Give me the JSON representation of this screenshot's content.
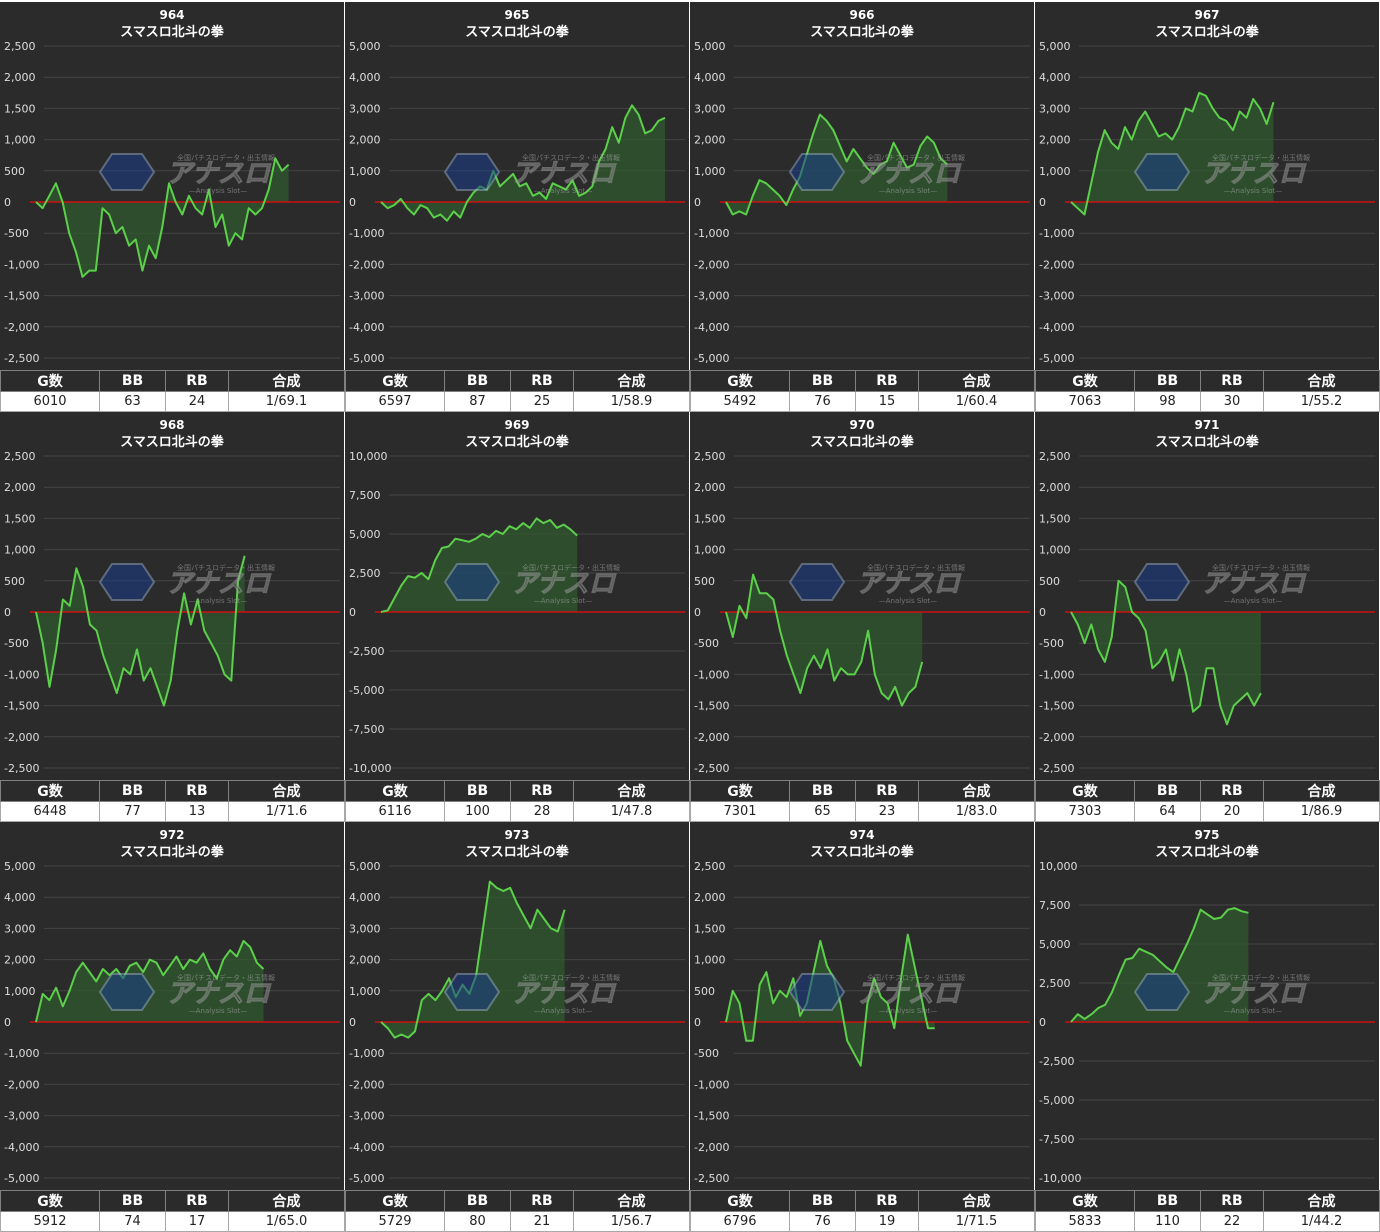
{
  "chart_data": [
    {
      "type": "area",
      "machine_no": "964",
      "title": "スマスロ北斗の拳",
      "ylim": [
        -2500,
        2500
      ],
      "yticks": [
        "2,500",
        "2,000",
        "1,500",
        "1,000",
        "500",
        "0",
        "-500",
        "-1,000",
        "-1,500",
        "-2,000",
        "-2,500"
      ],
      "y": [
        0,
        -100,
        100,
        300,
        0,
        -500,
        -800,
        -1200,
        -1100,
        -1100,
        -100,
        -200,
        -500,
        -400,
        -700,
        -600,
        -1100,
        -700,
        -900,
        -400,
        300,
        0,
        -200,
        100,
        -100,
        -200,
        200,
        -400,
        -200,
        -700,
        -500,
        -600,
        -100,
        -200,
        -100,
        200,
        700,
        500,
        600
      ]
    },
    {
      "type": "area",
      "machine_no": "965",
      "title": "スマスロ北斗の拳",
      "ylim": [
        -5000,
        5000
      ],
      "yticks": [
        "5,000",
        "4,000",
        "3,000",
        "2,000",
        "1,000",
        "0",
        "-1,000",
        "-2,000",
        "-3,000",
        "-4,000",
        "-5,000"
      ],
      "y": [
        0,
        -200,
        -100,
        100,
        -200,
        -400,
        -100,
        -200,
        -500,
        -400,
        -600,
        -300,
        -500,
        0,
        300,
        500,
        400,
        1000,
        500,
        700,
        900,
        500,
        600,
        200,
        300,
        100,
        600,
        500,
        400,
        700,
        200,
        300,
        500,
        1300,
        1700,
        2400,
        1900,
        2700,
        3100,
        2800,
        2200,
        2300,
        2600,
        2700
      ]
    },
    {
      "type": "area",
      "machine_no": "966",
      "title": "スマスロ北斗の拳",
      "ylim": [
        -5000,
        5000
      ],
      "yticks": [
        "5,000",
        "4,000",
        "3,000",
        "2,000",
        "1,000",
        "0",
        "-1,000",
        "-2,000",
        "-3,000",
        "-4,000",
        "-5,000"
      ],
      "y": [
        0,
        -400,
        -300,
        -400,
        200,
        700,
        600,
        400,
        200,
        -100,
        400,
        800,
        1500,
        2200,
        2800,
        2600,
        2300,
        1800,
        1300,
        1700,
        1400,
        1100,
        900,
        1200,
        1300,
        1900,
        1500,
        1100,
        1200,
        1800,
        2100,
        1900,
        1400,
        1200
      ]
    },
    {
      "type": "area",
      "machine_no": "967",
      "title": "スマスロ北斗の拳",
      "ylim": [
        -5000,
        5000
      ],
      "yticks": [
        "5,000",
        "4,000",
        "3,000",
        "2,000",
        "1,000",
        "0",
        "-1,000",
        "-2,000",
        "-3,000",
        "-4,000",
        "-5,000"
      ],
      "y": [
        0,
        -200,
        -400,
        600,
        1600,
        2300,
        1900,
        1700,
        2400,
        2000,
        2600,
        2900,
        2500,
        2100,
        2200,
        2000,
        2400,
        3000,
        2900,
        3500,
        3400,
        3000,
        2700,
        2600,
        2300,
        2900,
        2700,
        3300,
        3000,
        2500,
        3200
      ]
    },
    {
      "type": "area",
      "machine_no": "968",
      "title": "スマスロ北斗の拳",
      "ylim": [
        -2500,
        2500
      ],
      "yticks": [
        "2,500",
        "2,000",
        "1,500",
        "1,000",
        "500",
        "0",
        "-500",
        "-1,000",
        "-1,500",
        "-2,000",
        "-2,500"
      ],
      "y": [
        0,
        -500,
        -1200,
        -600,
        200,
        100,
        700,
        400,
        -200,
        -300,
        -700,
        -1000,
        -1300,
        -900,
        -1000,
        -600,
        -1100,
        -900,
        -1200,
        -1500,
        -1100,
        -300,
        300,
        -200,
        200,
        -300,
        -500,
        -700,
        -1000,
        -1100,
        500,
        900
      ]
    },
    {
      "type": "area",
      "machine_no": "969",
      "title": "スマスロ北斗の拳",
      "ylim": [
        -10000,
        10000
      ],
      "yticks": [
        "10,000",
        "7,500",
        "5,000",
        "2,500",
        "0",
        "-2,500",
        "-5,000",
        "-7,500",
        "-10,000"
      ],
      "y": [
        0,
        100,
        900,
        1700,
        2300,
        2200,
        2500,
        2100,
        3300,
        4100,
        4200,
        4700,
        4600,
        4500,
        4700,
        5000,
        4800,
        5200,
        5000,
        5500,
        5300,
        5700,
        5400,
        6000,
        5700,
        5900,
        5400,
        5600,
        5300,
        4900
      ]
    },
    {
      "type": "area",
      "machine_no": "970",
      "title": "スマスロ北斗の拳",
      "ylim": [
        -2500,
        2500
      ],
      "yticks": [
        "2,500",
        "2,000",
        "1,500",
        "1,000",
        "500",
        "0",
        "-500",
        "-1,000",
        "-1,500",
        "-2,000",
        "-2,500"
      ],
      "y": [
        0,
        -400,
        100,
        -100,
        600,
        300,
        300,
        200,
        -300,
        -700,
        -1000,
        -1300,
        -900,
        -700,
        -900,
        -600,
        -1100,
        -900,
        -1000,
        -1000,
        -800,
        -300,
        -1000,
        -1300,
        -1400,
        -1200,
        -1500,
        -1300,
        -1200,
        -800
      ]
    },
    {
      "type": "area",
      "machine_no": "971",
      "title": "スマスロ北斗の拳",
      "ylim": [
        -2500,
        2500
      ],
      "yticks": [
        "2,500",
        "2,000",
        "1,500",
        "1,000",
        "500",
        "0",
        "-500",
        "-1,000",
        "-1,500",
        "-2,000",
        "-2,500"
      ],
      "y": [
        0,
        -200,
        -500,
        -200,
        -600,
        -800,
        -400,
        500,
        400,
        0,
        -100,
        -300,
        -900,
        -800,
        -600,
        -1100,
        -600,
        -1000,
        -1600,
        -1500,
        -900,
        -900,
        -1500,
        -1800,
        -1500,
        -1400,
        -1300,
        -1500,
        -1300
      ]
    },
    {
      "type": "area",
      "machine_no": "972",
      "title": "スマスロ北斗の拳",
      "ylim": [
        -5000,
        5000
      ],
      "yticks": [
        "5,000",
        "4,000",
        "3,000",
        "2,000",
        "1,000",
        "0",
        "-1,000",
        "-2,000",
        "-3,000",
        "-4,000",
        "-5,000"
      ],
      "y": [
        0,
        900,
        700,
        1100,
        500,
        1000,
        1600,
        1900,
        1600,
        1300,
        1700,
        1500,
        1700,
        1400,
        1800,
        1900,
        1600,
        2000,
        1900,
        1500,
        1800,
        2100,
        1700,
        2000,
        1900,
        2200,
        1700,
        1400,
        2000,
        2300,
        2100,
        2600,
        2400,
        1900,
        1700
      ]
    },
    {
      "type": "area",
      "machine_no": "973",
      "title": "スマスロ北斗の拳",
      "ylim": [
        -5000,
        5000
      ],
      "yticks": [
        "5,000",
        "4,000",
        "3,000",
        "2,000",
        "1,000",
        "0",
        "-1,000",
        "-2,000",
        "-3,000",
        "-4,000",
        "-5,000"
      ],
      "y": [
        0,
        -200,
        -500,
        -400,
        -500,
        -300,
        700,
        900,
        700,
        1000,
        1400,
        800,
        1200,
        900,
        1500,
        3000,
        4500,
        4300,
        4200,
        4300,
        3800,
        3400,
        3000,
        3600,
        3300,
        3000,
        2900,
        3600
      ]
    },
    {
      "type": "area",
      "machine_no": "974",
      "title": "スマスロ北斗の拳",
      "ylim": [
        -2500,
        2500
      ],
      "yticks": [
        "2,500",
        "2,000",
        "1,500",
        "1,000",
        "500",
        "0",
        "-500",
        "-1,000",
        "-1,500",
        "-2,000",
        "-2,500"
      ],
      "y": [
        0,
        500,
        300,
        -300,
        -300,
        600,
        800,
        300,
        500,
        400,
        700,
        100,
        300,
        800,
        1300,
        900,
        700,
        300,
        -300,
        -500,
        -700,
        300,
        700,
        400,
        300,
        -100,
        700,
        1400,
        900,
        400,
        -100,
        -100
      ]
    },
    {
      "type": "area",
      "machine_no": "975",
      "title": "スマスロ北斗の拳",
      "ylim": [
        -10000,
        10000
      ],
      "yticks": [
        "10,000",
        "7,500",
        "5,000",
        "2,500",
        "0",
        "-2,500",
        "-5,000",
        "-7,500",
        "-10,000"
      ],
      "y": [
        0,
        500,
        200,
        500,
        900,
        1100,
        1900,
        3000,
        4000,
        4100,
        4700,
        4500,
        4300,
        3900,
        3500,
        3200,
        4100,
        5000,
        6000,
        7200,
        6900,
        6600,
        6700,
        7200,
        7300,
        7100,
        7000
      ]
    }
  ],
  "stats_headers": [
    "G数",
    "BB",
    "RB",
    "合成"
  ],
  "stats": [
    {
      "g": "6010",
      "bb": "63",
      "rb": "24",
      "gousei": "1/69.1"
    },
    {
      "g": "6597",
      "bb": "87",
      "rb": "25",
      "gousei": "1/58.9"
    },
    {
      "g": "5492",
      "bb": "76",
      "rb": "15",
      "gousei": "1/60.4"
    },
    {
      "g": "7063",
      "bb": "98",
      "rb": "30",
      "gousei": "1/55.2"
    },
    {
      "g": "6448",
      "bb": "77",
      "rb": "13",
      "gousei": "1/71.6"
    },
    {
      "g": "6116",
      "bb": "100",
      "rb": "28",
      "gousei": "1/47.8"
    },
    {
      "g": "7301",
      "bb": "65",
      "rb": "23",
      "gousei": "1/83.0"
    },
    {
      "g": "7303",
      "bb": "64",
      "rb": "20",
      "gousei": "1/86.9"
    },
    {
      "g": "5912",
      "bb": "74",
      "rb": "17",
      "gousei": "1/65.0"
    },
    {
      "g": "5729",
      "bb": "80",
      "rb": "21",
      "gousei": "1/56.7"
    },
    {
      "g": "6796",
      "bb": "76",
      "rb": "19",
      "gousei": "1/71.5"
    },
    {
      "g": "5833",
      "bb": "110",
      "rb": "22",
      "gousei": "1/44.2"
    }
  ],
  "watermark": {
    "brand": "アナスロ",
    "tagline": "全国パチスロデータ・出玉情報",
    "sub": "—Analysis Slot—"
  },
  "colors": {
    "panel_bg": "#2b2b2b",
    "line": "#5cd04a",
    "fill": "#2f5a2f",
    "zero_line": "#cc1111",
    "grid": "#444444",
    "tick_text": "#dddddd"
  }
}
